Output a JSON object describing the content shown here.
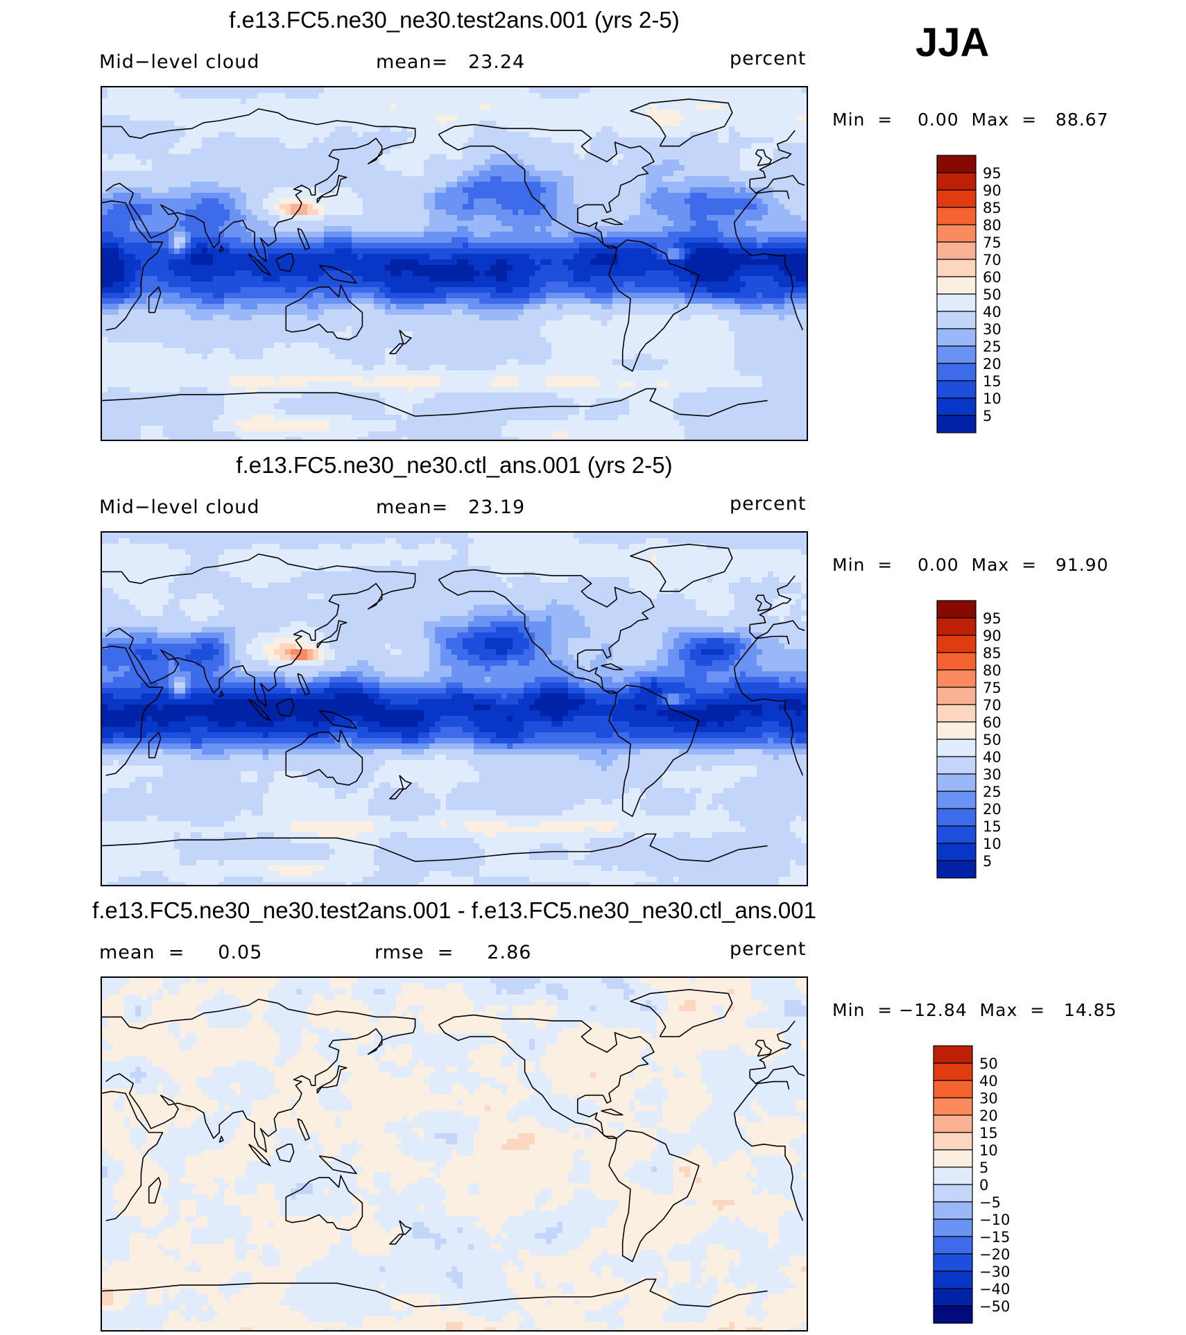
{
  "season": "JJA",
  "colors": {
    "abs_scale": [
      "#000c7d",
      "#0022a6",
      "#0836c6",
      "#1d4fdc",
      "#3d6bea",
      "#6a93f4",
      "#9ab8f8",
      "#c3d6fa",
      "#e0ebfc",
      "#fbefe1",
      "#fcd6bf",
      "#fbb294",
      "#fb8a5e",
      "#f56430",
      "#e13b11",
      "#bd2007",
      "#870a00"
    ],
    "diff_scale": [
      "#000c7d",
      "#0022a6",
      "#0836c6",
      "#1d4fdc",
      "#3d6bea",
      "#6a93f4",
      "#9ab8f8",
      "#c3d6fa",
      "#e0ebfc",
      "#fbefe1",
      "#fcd6bf",
      "#fbb294",
      "#fb8a5e",
      "#f56430",
      "#e13b11",
      "#bd2007",
      "#870a00"
    ]
  },
  "panels": [
    {
      "title": "f.e13.FC5.ne30_ne30.test2ans.001 (yrs 2-5)",
      "left_label": "Mid−level cloud",
      "center_label": "mean=   23.24",
      "right_label": "percent",
      "minmax": "Min  =    0.00  Max  =   88.67",
      "colorbar_ticks": [
        "95",
        "90",
        "85",
        "80",
        "75",
        "70",
        "60",
        "50",
        "40",
        "30",
        "25",
        "20",
        "15",
        "10",
        "5"
      ],
      "field": "abs",
      "variant": 0
    },
    {
      "title": "f.e13.FC5.ne30_ne30.ctl_ans.001 (yrs 2-5)",
      "left_label": "Mid−level cloud",
      "center_label": "mean=   23.19",
      "right_label": "percent",
      "minmax": "Min  =    0.00  Max  =   91.90",
      "colorbar_ticks": [
        "95",
        "90",
        "85",
        "80",
        "75",
        "70",
        "60",
        "50",
        "40",
        "30",
        "25",
        "20",
        "15",
        "10",
        "5"
      ],
      "field": "abs",
      "variant": 1
    },
    {
      "title": "f.e13.FC5.ne30_ne30.test2ans.001 - f.e13.FC5.ne30_ne30.ctl_ans.001",
      "left_label": "mean  =     0.05",
      "center_label": "rmse  =     2.86",
      "right_label": "percent",
      "minmax": "Min  = −12.84  Max  =   14.85",
      "colorbar_ticks": [
        "50",
        "40",
        "30",
        "20",
        "15",
        "10",
        "5",
        "0",
        "−5",
        "−10",
        "−15",
        "−20",
        "−30",
        "−40",
        "−50"
      ],
      "field": "diff",
      "variant": 2
    }
  ]
}
